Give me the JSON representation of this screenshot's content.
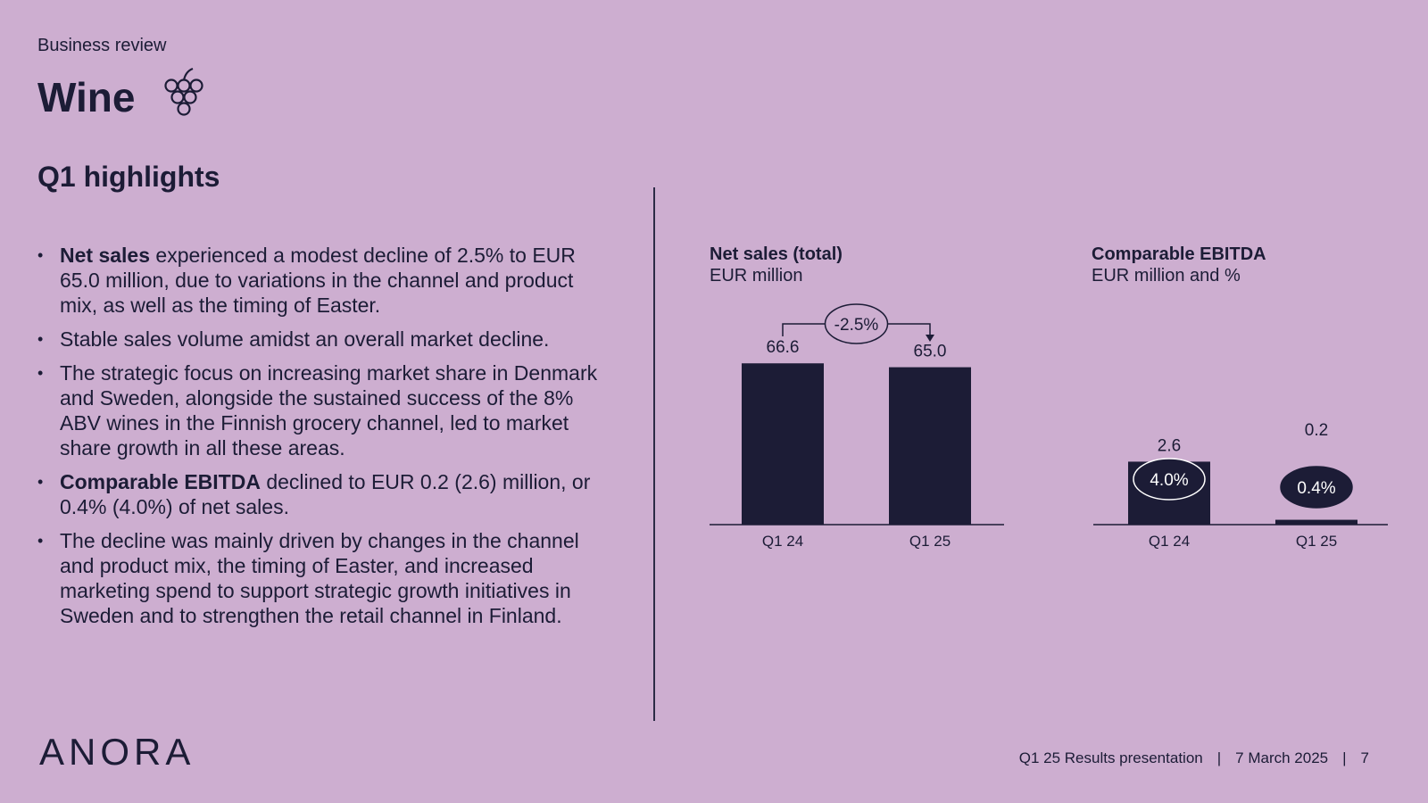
{
  "theme": {
    "background": "#cdaed0",
    "ink": "#1c1c36"
  },
  "header": {
    "section": "Business review",
    "title": "Wine",
    "icon": "grape-icon"
  },
  "highlights": {
    "title": "Q1 highlights",
    "bullets": [
      {
        "bold": "Net sales",
        "text": " experienced a modest decline of 2.5% to EUR 65.0 million, due to variations in the channel and product mix, as well as the timing of Easter."
      },
      {
        "bold": "",
        "text": "Stable sales volume amidst an overall market decline."
      },
      {
        "bold": "",
        "text": "The strategic focus on increasing market share in Denmark and Sweden, alongside the sustained success of the 8% ABV wines in the Finnish grocery channel, led to market share growth in all these areas."
      },
      {
        "bold": "Comparable EBITDA",
        "text": " declined to EUR 0.2 (2.6) million, or 0.4% (4.0%) of net sales."
      },
      {
        "bold": "",
        "text": "The decline was mainly driven by changes in the channel and product mix, the timing of Easter, and increased marketing spend to support strategic growth initiatives in Sweden and to strengthen the retail channel in Finland."
      }
    ]
  },
  "chart_data": [
    {
      "type": "bar",
      "title": "Net sales (total)",
      "subtitle": "EUR million",
      "categories": [
        "Q1 24",
        "Q1 25"
      ],
      "values": [
        66.6,
        65.0
      ],
      "value_labels": [
        "66.6",
        "65.0"
      ],
      "change_label": "-2.5%",
      "ylim": [
        0,
        70
      ]
    },
    {
      "type": "bar",
      "title": "Comparable EBITDA",
      "subtitle": "EUR million and %",
      "categories": [
        "Q1 24",
        "Q1 25"
      ],
      "values": [
        2.6,
        0.2
      ],
      "value_labels": [
        "2.6",
        "0.2"
      ],
      "margin_labels": [
        "4.0%",
        "0.4%"
      ],
      "ylim": [
        0,
        7
      ]
    }
  ],
  "logo": {
    "text": "ANORA"
  },
  "footer": {
    "presentation": "Q1 25 Results presentation",
    "date": "7 March 2025",
    "page": "7",
    "separator": "|"
  }
}
